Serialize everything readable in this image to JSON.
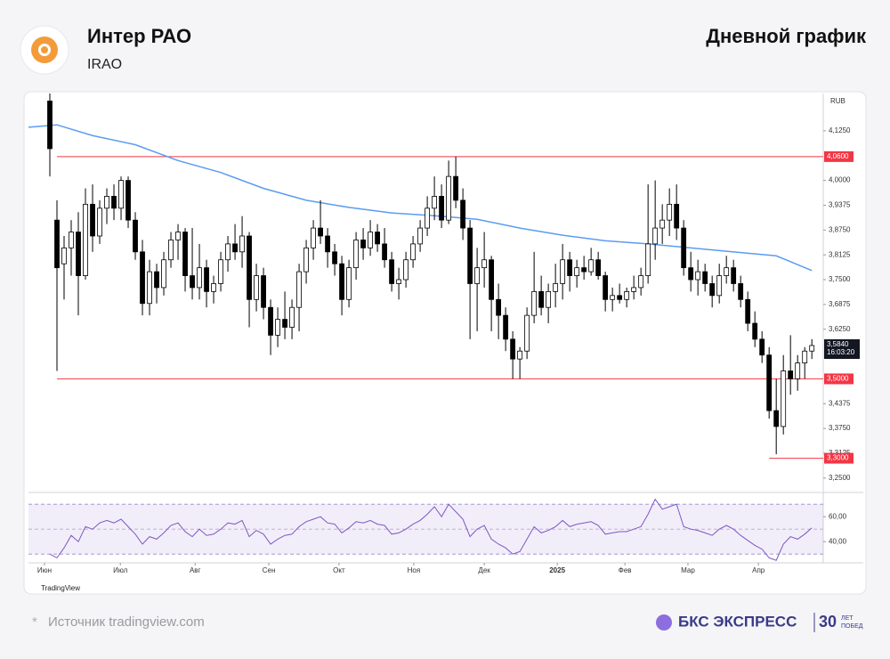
{
  "header": {
    "title": "Интер РАО",
    "ticker": "IRAO",
    "right_title": "Дневной график"
  },
  "chart_data": {
    "type": "candlestick",
    "currency": "RUB",
    "ylim": [
      3.216,
      4.219
    ],
    "yticks": [
      {
        "value": 4.125,
        "label": "4,1250"
      },
      {
        "value": 4.0,
        "label": "4,0000"
      },
      {
        "value": 3.9375,
        "label": "3,9375"
      },
      {
        "value": 3.875,
        "label": "3,8750"
      },
      {
        "value": 3.8125,
        "label": "3,8125"
      },
      {
        "value": 3.75,
        "label": "3,7500"
      },
      {
        "value": 3.6875,
        "label": "3,6875"
      },
      {
        "value": 3.625,
        "label": "3,6250"
      },
      {
        "value": 3.4375,
        "label": "3,4375"
      },
      {
        "value": 3.375,
        "label": "3,3750"
      },
      {
        "value": 3.3125,
        "label": "3,3125"
      },
      {
        "value": 3.25,
        "label": "3,2500"
      }
    ],
    "xlim": [
      -3,
      108.6
    ],
    "xticks": [
      {
        "value": -0.75,
        "label": "Июн"
      },
      {
        "value": 9.9,
        "label": "Июл"
      },
      {
        "value": 20.4,
        "label": "Авг"
      },
      {
        "value": 30.75,
        "label": "Сен"
      },
      {
        "value": 40.6,
        "label": "Окт"
      },
      {
        "value": 51.1,
        "label": "Ноя"
      },
      {
        "value": 61,
        "label": "Дек"
      },
      {
        "value": 71.25,
        "label": "2025"
      },
      {
        "value": 80.75,
        "label": "Фев"
      },
      {
        "value": 89.6,
        "label": "Мар"
      },
      {
        "value": 99.5,
        "label": "Апр"
      }
    ],
    "candles": [
      [
        4.2,
        4.22,
        4.01,
        4.08
      ],
      [
        3.9,
        3.95,
        3.52,
        3.78
      ],
      [
        3.79,
        3.86,
        3.7,
        3.83
      ],
      [
        3.83,
        3.9,
        3.76,
        3.87
      ],
      [
        3.87,
        3.92,
        3.66,
        3.76
      ],
      [
        3.76,
        3.98,
        3.75,
        3.94
      ],
      [
        3.94,
        3.99,
        3.82,
        3.86
      ],
      [
        3.86,
        3.95,
        3.84,
        3.93
      ],
      [
        3.93,
        3.98,
        3.89,
        3.96
      ],
      [
        3.96,
        3.99,
        3.9,
        3.93
      ],
      [
        3.93,
        4.01,
        3.9,
        4.0
      ],
      [
        4.0,
        4.01,
        3.88,
        3.9
      ],
      [
        3.9,
        3.92,
        3.8,
        3.82
      ],
      [
        3.82,
        3.85,
        3.66,
        3.69
      ],
      [
        3.69,
        3.8,
        3.66,
        3.77
      ],
      [
        3.77,
        3.79,
        3.69,
        3.73
      ],
      [
        3.73,
        3.82,
        3.71,
        3.8
      ],
      [
        3.8,
        3.87,
        3.78,
        3.85
      ],
      [
        3.85,
        3.89,
        3.8,
        3.87
      ],
      [
        3.87,
        3.88,
        3.72,
        3.76
      ],
      [
        3.76,
        3.88,
        3.7,
        3.73
      ],
      [
        3.73,
        3.84,
        3.7,
        3.78
      ],
      [
        3.78,
        3.8,
        3.68,
        3.72
      ],
      [
        3.72,
        3.76,
        3.69,
        3.74
      ],
      [
        3.74,
        3.82,
        3.72,
        3.8
      ],
      [
        3.8,
        3.86,
        3.77,
        3.84
      ],
      [
        3.84,
        3.89,
        3.8,
        3.82
      ],
      [
        3.82,
        3.91,
        3.78,
        3.86
      ],
      [
        3.86,
        3.87,
        3.63,
        3.7
      ],
      [
        3.7,
        3.79,
        3.67,
        3.76
      ],
      [
        3.76,
        3.78,
        3.65,
        3.68
      ],
      [
        3.68,
        3.7,
        3.56,
        3.61
      ],
      [
        3.61,
        3.68,
        3.58,
        3.65
      ],
      [
        3.65,
        3.72,
        3.6,
        3.63
      ],
      [
        3.63,
        3.7,
        3.6,
        3.68
      ],
      [
        3.68,
        3.79,
        3.62,
        3.77
      ],
      [
        3.77,
        3.85,
        3.74,
        3.83
      ],
      [
        3.83,
        3.9,
        3.8,
        3.88
      ],
      [
        3.88,
        3.95,
        3.84,
        3.86
      ],
      [
        3.86,
        3.88,
        3.78,
        3.82
      ],
      [
        3.82,
        3.84,
        3.76,
        3.79
      ],
      [
        3.79,
        3.81,
        3.66,
        3.7
      ],
      [
        3.7,
        3.8,
        3.68,
        3.78
      ],
      [
        3.78,
        3.87,
        3.75,
        3.85
      ],
      [
        3.85,
        3.88,
        3.8,
        3.83
      ],
      [
        3.83,
        3.9,
        3.81,
        3.87
      ],
      [
        3.87,
        3.89,
        3.82,
        3.84
      ],
      [
        3.84,
        3.88,
        3.78,
        3.8
      ],
      [
        3.8,
        3.82,
        3.72,
        3.74
      ],
      [
        3.74,
        3.78,
        3.7,
        3.75
      ],
      [
        3.75,
        3.82,
        3.73,
        3.8
      ],
      [
        3.8,
        3.86,
        3.78,
        3.84
      ],
      [
        3.84,
        3.9,
        3.82,
        3.88
      ],
      [
        3.88,
        3.96,
        3.86,
        3.93
      ],
      [
        3.93,
        4.01,
        3.9,
        3.96
      ],
      [
        3.96,
        3.99,
        3.88,
        3.9
      ],
      [
        3.9,
        4.05,
        3.89,
        4.01
      ],
      [
        4.01,
        4.06,
        3.93,
        3.95
      ],
      [
        3.95,
        3.98,
        3.85,
        3.88
      ],
      [
        3.88,
        3.9,
        3.6,
        3.74
      ],
      [
        3.74,
        3.83,
        3.62,
        3.78
      ],
      [
        3.78,
        3.87,
        3.73,
        3.8
      ],
      [
        3.8,
        3.81,
        3.62,
        3.7
      ],
      [
        3.7,
        3.74,
        3.6,
        3.66
      ],
      [
        3.66,
        3.68,
        3.57,
        3.6
      ],
      [
        3.6,
        3.62,
        3.5,
        3.55
      ],
      [
        3.55,
        3.58,
        3.5,
        3.57
      ],
      [
        3.57,
        3.68,
        3.55,
        3.66
      ],
      [
        3.66,
        3.82,
        3.64,
        3.72
      ],
      [
        3.72,
        3.76,
        3.66,
        3.68
      ],
      [
        3.68,
        3.74,
        3.64,
        3.72
      ],
      [
        3.72,
        3.79,
        3.68,
        3.74
      ],
      [
        3.74,
        3.84,
        3.7,
        3.8
      ],
      [
        3.8,
        3.82,
        3.72,
        3.76
      ],
      [
        3.76,
        3.8,
        3.73,
        3.78
      ],
      [
        3.78,
        3.81,
        3.75,
        3.77
      ],
      [
        3.77,
        3.83,
        3.76,
        3.8
      ],
      [
        3.8,
        3.82,
        3.75,
        3.76
      ],
      [
        3.76,
        3.77,
        3.67,
        3.7
      ],
      [
        3.7,
        3.73,
        3.67,
        3.71
      ],
      [
        3.71,
        3.74,
        3.69,
        3.7
      ],
      [
        3.7,
        3.73,
        3.68,
        3.72
      ],
      [
        3.72,
        3.76,
        3.7,
        3.73
      ],
      [
        3.73,
        3.78,
        3.71,
        3.76
      ],
      [
        3.76,
        3.99,
        3.74,
        3.84
      ],
      [
        3.84,
        4.0,
        3.8,
        3.88
      ],
      [
        3.88,
        3.94,
        3.84,
        3.9
      ],
      [
        3.9,
        3.98,
        3.86,
        3.94
      ],
      [
        3.94,
        3.99,
        3.85,
        3.88
      ],
      [
        3.88,
        3.9,
        3.76,
        3.78
      ],
      [
        3.78,
        3.82,
        3.72,
        3.75
      ],
      [
        3.75,
        3.8,
        3.71,
        3.77
      ],
      [
        3.77,
        3.79,
        3.72,
        3.74
      ],
      [
        3.74,
        3.76,
        3.68,
        3.71
      ],
      [
        3.71,
        3.79,
        3.69,
        3.76
      ],
      [
        3.76,
        3.81,
        3.74,
        3.78
      ],
      [
        3.78,
        3.8,
        3.72,
        3.74
      ],
      [
        3.74,
        3.76,
        3.68,
        3.7
      ],
      [
        3.7,
        3.72,
        3.62,
        3.64
      ],
      [
        3.64,
        3.67,
        3.58,
        3.6
      ],
      [
        3.6,
        3.62,
        3.54,
        3.56
      ],
      [
        3.56,
        3.58,
        3.4,
        3.42
      ],
      [
        3.42,
        3.5,
        3.31,
        3.38
      ],
      [
        3.38,
        3.56,
        3.36,
        3.52
      ],
      [
        3.52,
        3.61,
        3.46,
        3.5
      ],
      [
        3.5,
        3.56,
        3.47,
        3.54
      ],
      [
        3.54,
        3.58,
        3.5,
        3.57
      ],
      [
        3.57,
        3.6,
        3.55,
        3.584
      ]
    ],
    "candle_colors": {
      "up": "#ffffff",
      "down": "#000000",
      "outline": "#000000"
    },
    "ma": {
      "color": "#5b9cf0",
      "x": [
        -3,
        1,
        6,
        12,
        18,
        24,
        30,
        36,
        42,
        48,
        54,
        60,
        66,
        72,
        78,
        84,
        90,
        96,
        102,
        107
      ],
      "values": [
        4.134,
        4.14,
        4.113,
        4.09,
        4.05,
        4.02,
        3.98,
        3.95,
        3.932,
        3.918,
        3.911,
        3.902,
        3.88,
        3.862,
        3.848,
        3.84,
        3.83,
        3.82,
        3.81,
        3.773
      ]
    },
    "levels": [
      {
        "value": 4.06,
        "label": "4,0600",
        "from": 1
      },
      {
        "value": 3.5,
        "label": "3,5000",
        "from": 1
      },
      {
        "value": 3.3,
        "label": "3,3000",
        "from": 101
      }
    ],
    "level_color": "#f23645",
    "last_price": {
      "value": 3.584,
      "label": "3,5840"
    },
    "timer": "16:03:20",
    "rsi": {
      "color": "#7e57c2",
      "ylim": [
        23,
        78
      ],
      "yticks": [
        {
          "value": 60,
          "label": "60,00"
        },
        {
          "value": 40,
          "label": "40,00"
        }
      ],
      "band": [
        30,
        70
      ],
      "mid": 50,
      "values": [
        30,
        27,
        35,
        45,
        40,
        52,
        50,
        55,
        57,
        55,
        58,
        52,
        46,
        38,
        44,
        42,
        47,
        53,
        55,
        48,
        44,
        50,
        45,
        46,
        50,
        55,
        54,
        57,
        44,
        49,
        46,
        38,
        42,
        45,
        46,
        52,
        56,
        58,
        60,
        55,
        54,
        47,
        51,
        56,
        55,
        57,
        54,
        53,
        46,
        47,
        50,
        54,
        57,
        62,
        68,
        60,
        70,
        64,
        58,
        44,
        50,
        53,
        42,
        38,
        35,
        30,
        32,
        42,
        52,
        47,
        49,
        52,
        57,
        52,
        54,
        55,
        56,
        53,
        46,
        47,
        48,
        48,
        50,
        52,
        62,
        74,
        66,
        68,
        70,
        52,
        50,
        49,
        47,
        45,
        50,
        53,
        50,
        45,
        41,
        37,
        34,
        27,
        25,
        38,
        44,
        42,
        46,
        51
      ]
    },
    "watermark": "TradingView"
  },
  "footer": {
    "source": "Источник tradingview.com",
    "brand": "БКС ЭКСПРЕСС",
    "brand_years": "30",
    "brand_sub1": "ЛЕТ",
    "brand_sub2": "ПОБЕД"
  }
}
